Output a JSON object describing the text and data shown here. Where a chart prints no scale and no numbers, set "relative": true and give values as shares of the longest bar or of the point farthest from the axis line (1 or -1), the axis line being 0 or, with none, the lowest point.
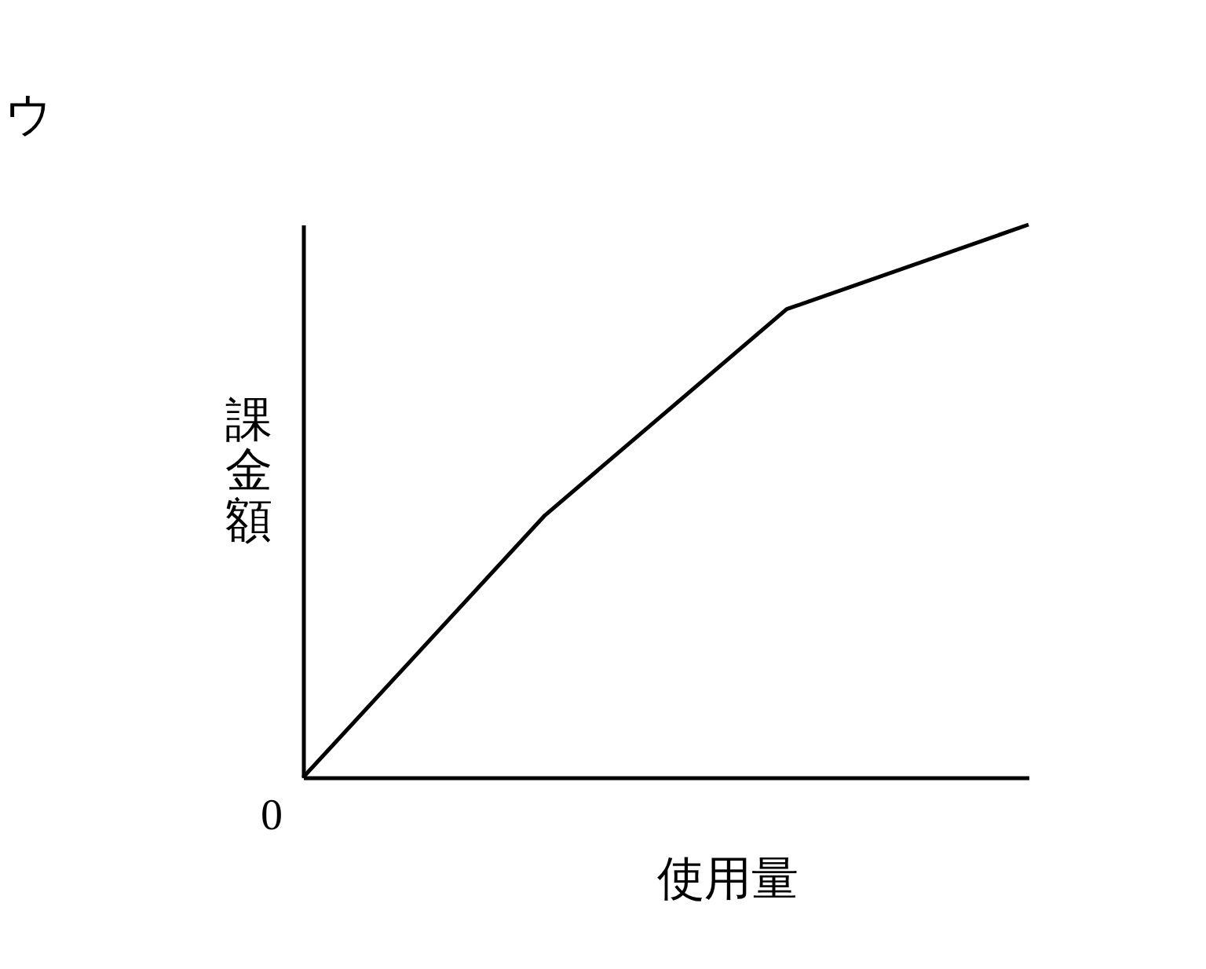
{
  "chart_data": {
    "type": "line",
    "title": "ウ",
    "xlabel": "使用量",
    "ylabel": "課金額",
    "relative": true,
    "categories": [
      null,
      null,
      null,
      null
    ],
    "series": [
      {
        "color": "#000000",
        "values": [
          0,
          0.474,
          0.847,
          1
        ]
      }
    ],
    "annotations": [
      {
        "text": "0"
      }
    ],
    "grid": false,
    "marker": "none",
    "line_style": "solid"
  }
}
